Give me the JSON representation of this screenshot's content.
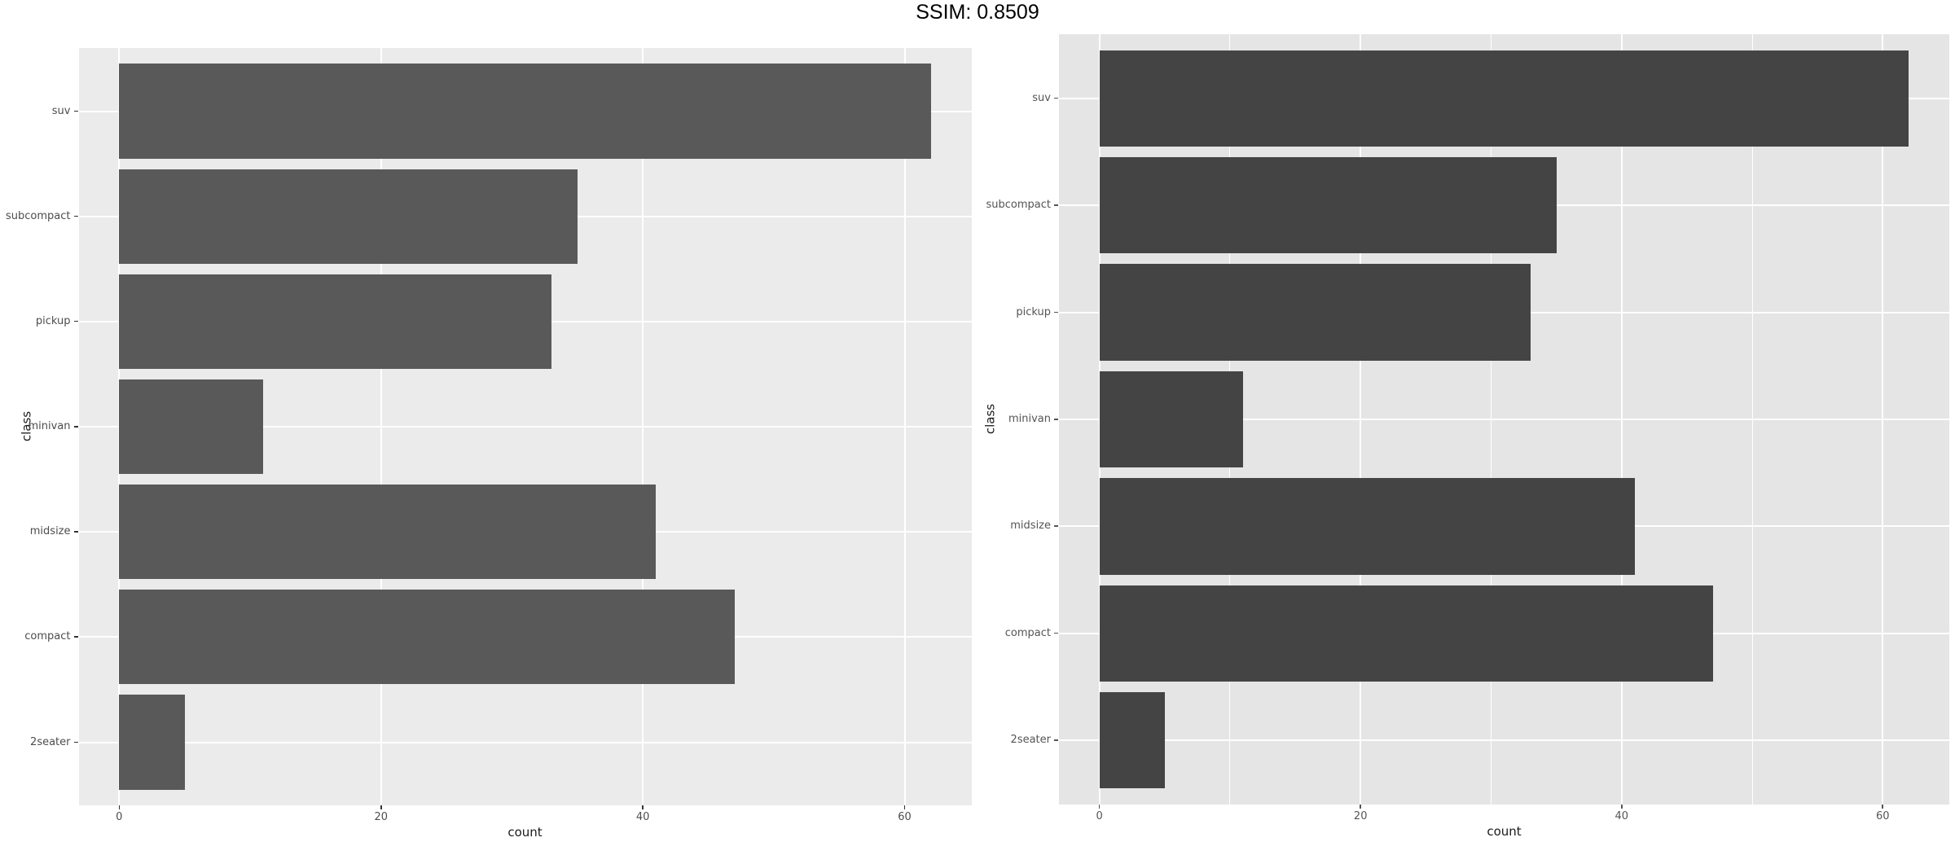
{
  "page": {
    "background": "#ffffff"
  },
  "header": {
    "title": "SSIM: 0.8509"
  },
  "chart_data": [
    {
      "id": "left",
      "type": "bar",
      "orientation": "horizontal",
      "xlabel": "count",
      "ylabel": "class",
      "categories": [
        "suv",
        "subcompact",
        "pickup",
        "minivan",
        "midsize",
        "compact",
        "2seater"
      ],
      "values": [
        62,
        35,
        33,
        11,
        41,
        47,
        5
      ],
      "xticks": [
        0,
        20,
        40,
        60
      ],
      "minor_xgrid": [],
      "xlim": [
        -3.1,
        65.1
      ],
      "grid": "major-vertical-and-category-rows",
      "legend": "none",
      "style": {
        "panel_bg": "#ebebeb",
        "bar_fill": "#595959",
        "grid_color": "#ffffff",
        "tick_color": "#333333",
        "tick_label_color": "#4d4d4d",
        "axis_title_color": "#1a1a1a"
      }
    },
    {
      "id": "right",
      "type": "bar",
      "orientation": "horizontal",
      "xlabel": "count",
      "ylabel": "class",
      "categories": [
        "suv",
        "subcompact",
        "pickup",
        "minivan",
        "midsize",
        "compact",
        "2seater"
      ],
      "values": [
        62,
        35,
        33,
        11,
        41,
        47,
        5
      ],
      "xticks": [
        0,
        20,
        40,
        60
      ],
      "minor_xgrid": [
        10,
        30,
        50
      ],
      "xlim": [
        -3.1,
        65.1
      ],
      "grid": "major-plus-minor-vertical-and-category-rows",
      "legend": "none",
      "style": {
        "panel_bg": "#e5e5e5",
        "bar_fill": "#444444",
        "grid_color": "#ffffff",
        "tick_color": "#555555",
        "tick_label_color": "#555555",
        "axis_title_color": "#1a1a1a"
      }
    }
  ]
}
